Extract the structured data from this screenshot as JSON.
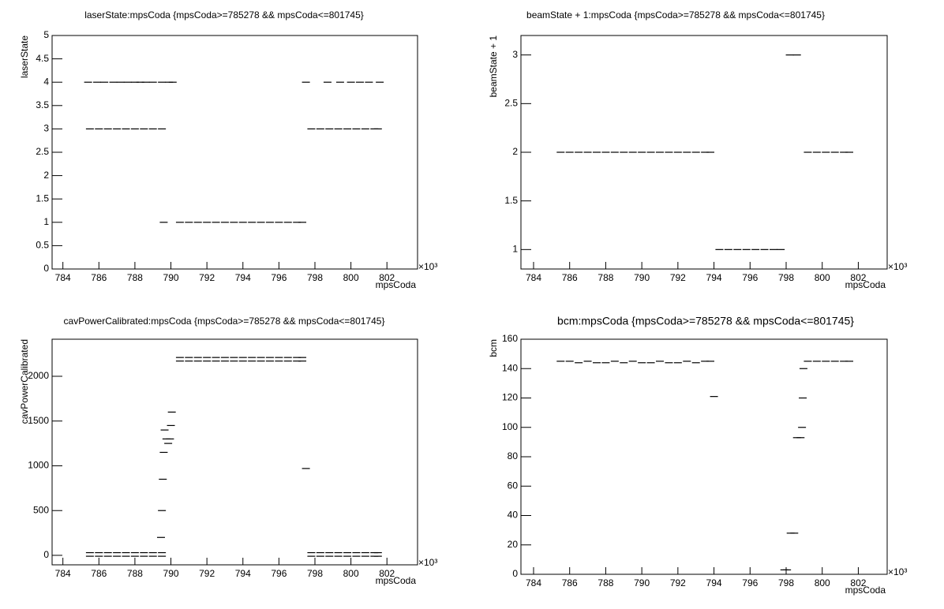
{
  "chart_data": [
    {
      "type": "scatter",
      "title": "laserState:mpsCoda {mpsCoda>=785278 && mpsCoda<=801745}",
      "x_label": "mpsCoda",
      "y_label": "laserState",
      "x_multiplier": "×10³",
      "color": "#000000",
      "grid": false,
      "xlim": [
        783.4,
        803.7
      ],
      "xticks": [
        784,
        786,
        788,
        790,
        792,
        794,
        796,
        798,
        800,
        802
      ],
      "ylim": [
        0,
        5
      ],
      "yticks": [
        0,
        0.5,
        1,
        1.5,
        2,
        2.5,
        3,
        3.5,
        4,
        4.5,
        5
      ],
      "x": [
        785.5,
        786,
        786.5,
        787,
        787.5,
        788,
        788.5,
        789,
        789.5,
        785.4,
        785.9,
        786.3,
        786.8,
        787.2,
        787.6,
        788,
        788.3,
        788.6,
        789,
        789.5,
        789.9,
        790.1,
        789.6,
        790.5,
        791,
        791.5,
        792,
        792.5,
        793,
        793.5,
        794,
        794.5,
        795,
        795.5,
        796,
        796.5,
        797,
        797.3,
        797.8,
        798.3,
        798.8,
        799.3,
        799.8,
        800.3,
        800.8,
        801.3,
        801.5,
        797.5,
        798.7,
        799.4,
        800,
        800.5,
        801,
        801.6
      ],
      "y": [
        3,
        3,
        3,
        3,
        3,
        3,
        3,
        3,
        3,
        4,
        4,
        4,
        4,
        4,
        4,
        4,
        4,
        4,
        4,
        4,
        4,
        4,
        1,
        1,
        1,
        1,
        1,
        1,
        1,
        1,
        1,
        1,
        1,
        1,
        1,
        1,
        1,
        1,
        3,
        3,
        3,
        3,
        3,
        3,
        3,
        3,
        3,
        4,
        4,
        4,
        4,
        4,
        4,
        4
      ]
    },
    {
      "type": "scatter",
      "title": "beamState + 1:mpsCoda {mpsCoda>=785278 && mpsCoda<=801745}",
      "x_label": "mpsCoda",
      "y_label": "beamState + 1",
      "x_multiplier": "×10³",
      "color": "#000000",
      "grid": false,
      "xlim": [
        783.3,
        803.6
      ],
      "xticks": [
        784,
        786,
        788,
        790,
        792,
        794,
        796,
        798,
        800,
        802
      ],
      "ylim": [
        0.8,
        3.2
      ],
      "yticks": [
        1,
        1.5,
        2,
        2.5,
        3
      ],
      "x": [
        785.5,
        786,
        786.5,
        787,
        787.5,
        788,
        788.5,
        789,
        789.5,
        790,
        790.5,
        791,
        791.5,
        792,
        792.5,
        793,
        793.5,
        793.8,
        794.3,
        794.8,
        795.3,
        795.8,
        796.3,
        796.8,
        797.3,
        797.7,
        798.2,
        798.6,
        799.2,
        799.7,
        800.2,
        800.7,
        801.2,
        801.5
      ],
      "y": [
        2,
        2,
        2,
        2,
        2,
        2,
        2,
        2,
        2,
        2,
        2,
        2,
        2,
        2,
        2,
        2,
        2,
        2,
        1,
        1,
        1,
        1,
        1,
        1,
        1,
        1,
        3,
        3,
        2,
        2,
        2,
        2,
        2,
        2
      ]
    },
    {
      "type": "scatter",
      "title": "cavPowerCalibrated:mpsCoda {mpsCoda>=785278 && mpsCoda<=801745}",
      "x_label": "mpsCoda",
      "y_label": "cavPowerCalibrated",
      "x_multiplier": "×10³",
      "color": "#000000",
      "grid": false,
      "xlim": [
        783.4,
        803.7
      ],
      "xticks": [
        784,
        786,
        788,
        790,
        792,
        794,
        796,
        798,
        800,
        802
      ],
      "ylim": [
        -106,
        2414
      ],
      "yticks": [
        0,
        500,
        1000,
        1500,
        2000
      ],
      "x": [
        785.5,
        786,
        786.5,
        787,
        787.5,
        788,
        788.5,
        789,
        789.5,
        785.5,
        786,
        786.5,
        787,
        787.5,
        788,
        788.5,
        789,
        789.5,
        789.45,
        789.5,
        789.55,
        789.6,
        789.65,
        789.75,
        789.85,
        789.95,
        790,
        790.05,
        790.5,
        791,
        791.5,
        792,
        792.5,
        793,
        793.5,
        794,
        794.5,
        795,
        795.5,
        796,
        796.5,
        797,
        797.3,
        790.5,
        791,
        791.5,
        792,
        792.5,
        793,
        793.5,
        794,
        794.5,
        795,
        795.5,
        796,
        796.5,
        797,
        797.3,
        797.5,
        797.8,
        798.3,
        798.8,
        799.3,
        799.8,
        800.3,
        800.8,
        801.3,
        801.5,
        797.8,
        798.3,
        798.8,
        799.3,
        799.8,
        800.3,
        800.8,
        801.3,
        801.5
      ],
      "y": [
        30,
        30,
        30,
        30,
        30,
        30,
        30,
        30,
        30,
        -10,
        -10,
        -10,
        -10,
        -10,
        -10,
        -10,
        -10,
        -10,
        200,
        500,
        850,
        1150,
        1400,
        1300,
        1250,
        1300,
        1450,
        1600,
        2210,
        2210,
        2210,
        2210,
        2210,
        2210,
        2210,
        2210,
        2210,
        2210,
        2210,
        2210,
        2210,
        2210,
        2210,
        2170,
        2170,
        2170,
        2170,
        2170,
        2170,
        2170,
        2170,
        2170,
        2170,
        2170,
        2170,
        2170,
        2170,
        2170,
        970,
        30,
        30,
        30,
        30,
        30,
        30,
        30,
        30,
        30,
        -10,
        -10,
        -10,
        -10,
        -10,
        -10,
        -10,
        -10,
        -10
      ]
    },
    {
      "type": "scatter",
      "title": "bcm:mpsCoda {mpsCoda>=785278 && mpsCoda<=801745}",
      "x_label": "mpsCoda",
      "y_label": "bcm",
      "x_multiplier": "×10³",
      "color": "#000000",
      "grid": false,
      "xlim": [
        783.3,
        803.6
      ],
      "xticks": [
        784,
        786,
        788,
        790,
        792,
        794,
        796,
        798,
        800,
        802
      ],
      "ylim": [
        0,
        160
      ],
      "yticks": [
        0,
        20,
        40,
        60,
        80,
        100,
        120,
        140,
        160
      ],
      "x": [
        785.5,
        786,
        786.5,
        787,
        787.5,
        788,
        788.5,
        789,
        789.5,
        790,
        790.5,
        791,
        791.5,
        792,
        792.5,
        793,
        793.5,
        793.8,
        794,
        797.9,
        798.05,
        798.25,
        798.45,
        798.6,
        798.8,
        798.88,
        798.92,
        798.96,
        799.2,
        799.7,
        800.2,
        800.7,
        801.2,
        801.5
      ],
      "y": [
        145,
        145,
        144,
        145,
        144,
        144,
        145,
        144,
        145,
        144,
        144,
        145,
        144,
        144,
        145,
        144,
        145,
        145,
        121,
        3,
        3,
        28,
        28,
        93,
        93,
        100,
        120,
        140,
        145,
        145,
        145,
        145,
        145,
        145
      ]
    }
  ]
}
